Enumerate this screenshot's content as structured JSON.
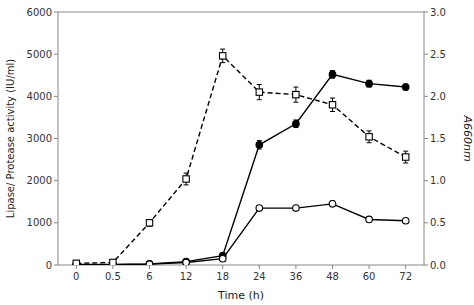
{
  "chart_data": {
    "type": "line",
    "xlabel": "Time (h)",
    "ylabel": "Lipase/ Protease activity (IU/ml)",
    "y2label": "A660nm",
    "categories": [
      "0",
      "0.5",
      "6",
      "12",
      "18",
      "24",
      "36",
      "48",
      "60",
      "72"
    ],
    "series": [
      {
        "color": "#000000",
        "marker": "circle",
        "line_style": "solid",
        "values": [
          15,
          15,
          25,
          80,
          220,
          2850,
          3350,
          4520,
          4300,
          4220
        ],
        "errors": [
          8,
          8,
          12,
          20,
          30,
          100,
          90,
          90,
          80,
          70
        ]
      },
      {
        "color": "#000000",
        "marker": "circle-open",
        "line_style": "solid",
        "values": [
          10,
          10,
          20,
          60,
          150,
          1350,
          1350,
          1450,
          1080,
          1050
        ],
        "errors": [
          5,
          5,
          10,
          15,
          20,
          55,
          55,
          65,
          45,
          45
        ]
      },
      {
        "color": "#000000",
        "marker": "square-open",
        "line_style": "dashed",
        "axis": "y2",
        "values": [
          0.02,
          0.03,
          0.5,
          1.02,
          2.48,
          2.05,
          2.02,
          1.9,
          1.52,
          1.28
        ],
        "errors": [
          0.01,
          0.01,
          0.04,
          0.07,
          0.08,
          0.09,
          0.09,
          0.08,
          0.07,
          0.07
        ]
      }
    ],
    "ylim": [
      0,
      6000
    ],
    "yticks": [
      0,
      1000,
      2000,
      3000,
      4000,
      5000,
      6000
    ],
    "y2lim": [
      0,
      3.0
    ],
    "y2ticks": [
      {
        "value": 0,
        "label": "0.0"
      },
      0.5,
      {
        "value": 1.0,
        "label": "1.0"
      },
      1.5,
      {
        "value": 2.0,
        "label": "2.0"
      },
      2.5,
      {
        "value": 3.0,
        "label": "3.0"
      }
    ],
    "grid": false
  }
}
